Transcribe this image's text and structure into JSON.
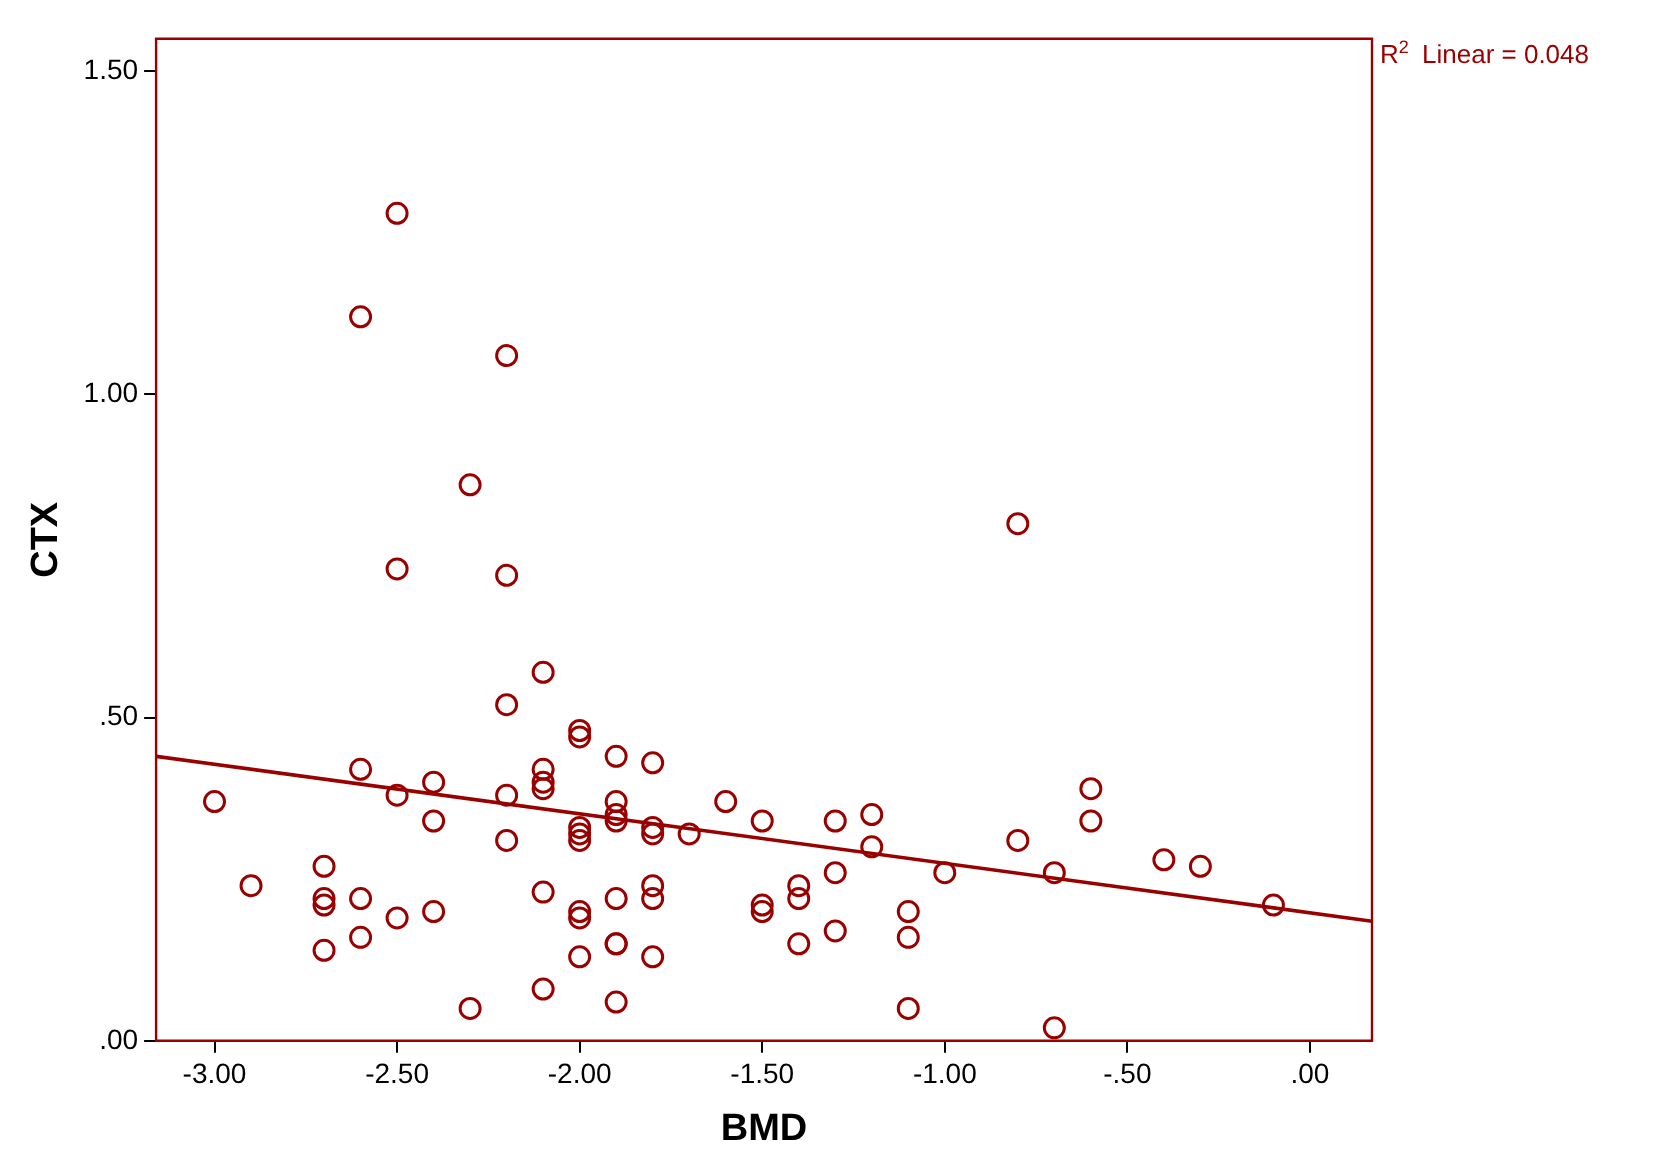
{
  "chart_data": {
    "type": "scatter",
    "xlabel": "BMD",
    "ylabel": "CTX",
    "xlim": [
      -3.16,
      0.17
    ],
    "ylim": [
      0,
      1.55
    ],
    "xticks": [
      {
        "value": -3,
        "label": "-3.00"
      },
      {
        "value": -2.5,
        "label": "-2.50"
      },
      {
        "value": -2,
        "label": "-2.00"
      },
      {
        "value": -1.5,
        "label": "-1.50"
      },
      {
        "value": -1,
        "label": "-1.00"
      },
      {
        "value": -0.5,
        "label": "-.50"
      },
      {
        "value": 0,
        "label": ".00"
      }
    ],
    "yticks": [
      {
        "value": 0,
        "label": ".00"
      },
      {
        "value": 0.5,
        "label": ".50"
      },
      {
        "value": 1,
        "label": "1.00"
      },
      {
        "value": 1.5,
        "label": "1.50"
      }
    ],
    "grid": false,
    "legend": false,
    "marker": "circle",
    "annotations": [
      "R$^{2}$ Linear = 0.048"
    ],
    "series": [
      {
        "color": "#990000",
        "x": [
          -2.5,
          -2.6,
          -2.2,
          -2.3,
          -2.5,
          -2.2,
          -0.8,
          -2.1,
          -2.2,
          -2.0,
          -2.0,
          -1.9,
          -1.8,
          -2.6,
          -2.1,
          -2.1,
          -2.1,
          -3.0,
          -2.5,
          -2.4,
          -2.2,
          -2.4,
          -2.2,
          -1.9,
          -1.9,
          -1.9,
          -2.0,
          -2.0,
          -2.0,
          -1.8,
          -1.8,
          -1.7,
          -1.6,
          -1.5,
          -1.3,
          -1.2,
          -1.2,
          -1.0,
          -0.8,
          -0.6,
          -0.6,
          -0.7,
          -0.4,
          -0.3,
          -0.1,
          -2.9,
          -2.7,
          -2.7,
          -2.7,
          -2.6,
          -2.5,
          -2.4,
          -2.6,
          -2.7,
          -2.1,
          -2.0,
          -2.0,
          -1.9,
          -1.8,
          -1.8,
          -2.0,
          -1.9,
          -1.9,
          -1.8,
          -2.1,
          -2.3,
          -1.9,
          -1.4,
          -1.4,
          -1.5,
          -1.5,
          -1.3,
          -1.3,
          -1.4,
          -1.1,
          -1.1,
          -1.1,
          -0.7
        ],
        "values": [
          1.28,
          1.12,
          1.06,
          0.86,
          0.73,
          0.72,
          0.8,
          0.57,
          0.52,
          0.48,
          0.47,
          0.44,
          0.43,
          0.42,
          0.42,
          0.4,
          0.39,
          0.37,
          0.38,
          0.4,
          0.38,
          0.34,
          0.31,
          0.37,
          0.35,
          0.34,
          0.33,
          0.32,
          0.31,
          0.33,
          0.32,
          0.32,
          0.37,
          0.34,
          0.34,
          0.35,
          0.3,
          0.26,
          0.31,
          0.39,
          0.34,
          0.26,
          0.28,
          0.27,
          0.21,
          0.24,
          0.27,
          0.22,
          0.21,
          0.22,
          0.19,
          0.2,
          0.16,
          0.14,
          0.23,
          0.2,
          0.19,
          0.22,
          0.24,
          0.22,
          0.13,
          0.15,
          0.15,
          0.13,
          0.08,
          0.05,
          0.06,
          0.24,
          0.22,
          0.21,
          0.2,
          0.26,
          0.17,
          0.15,
          0.2,
          0.16,
          0.05,
          0.02
        ]
      },
      {
        "type": "line",
        "color": "#990000",
        "marker": "none",
        "x": [
          -3.16,
          0.17
        ],
        "values": [
          0.44,
          0.185
        ]
      }
    ]
  }
}
